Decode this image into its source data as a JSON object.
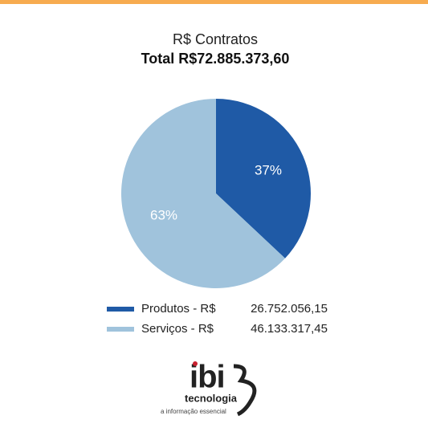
{
  "chart_data": {
    "type": "pie",
    "title": "R$ Contratos",
    "subtitle": "Total R$72.885.373,60",
    "categories": [
      "Produtos - R$",
      "Serviços - R$"
    ],
    "values": [
      37,
      63
    ],
    "value_labels": [
      "37%",
      "63%"
    ],
    "colors": [
      "#1f5aa6",
      "#a0c3dc"
    ],
    "legend_amounts": [
      "26.752.056,15",
      "46.133.317,45"
    ]
  },
  "logo": {
    "name": "ibi",
    "line1": "tecnologia",
    "line2": "a informação essencial"
  }
}
